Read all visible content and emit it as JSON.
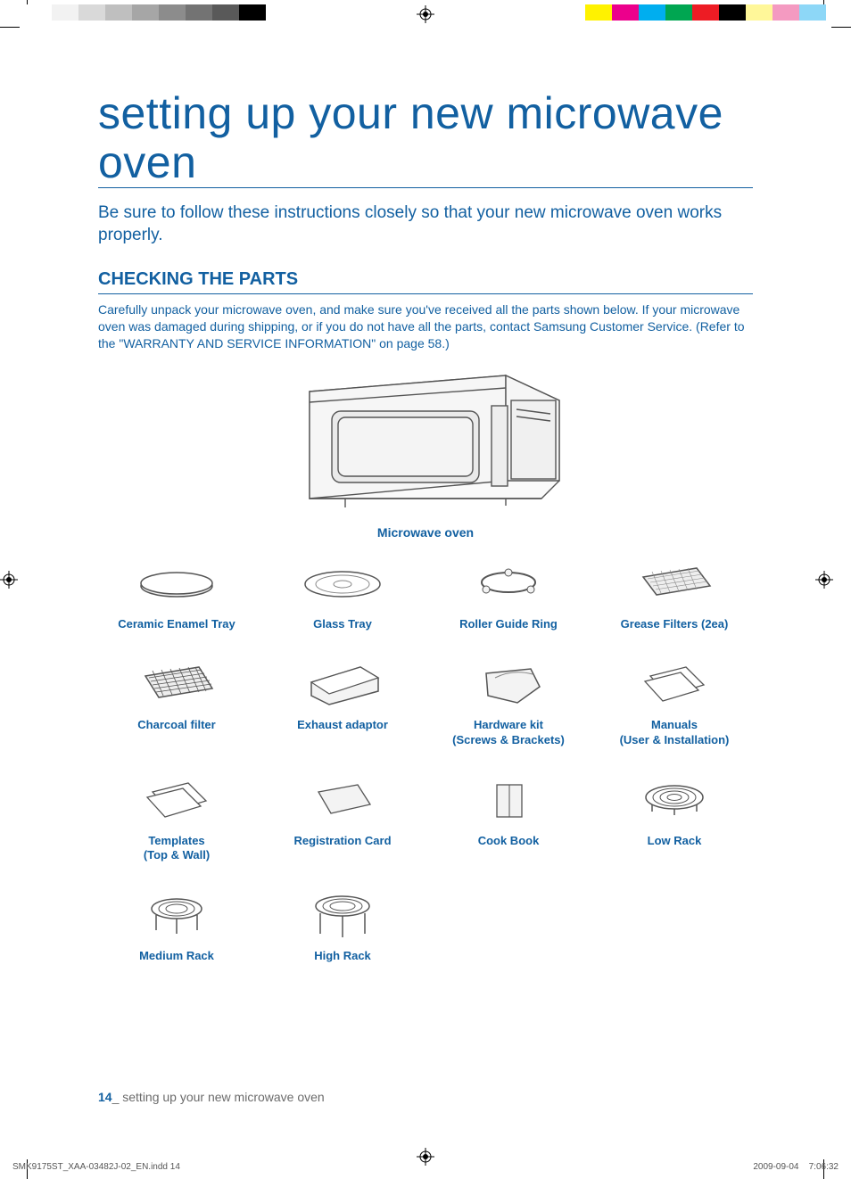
{
  "print": {
    "left_swatches": [
      "#ffffff",
      "#f2f2f2",
      "#d9d9d9",
      "#bfbfbf",
      "#a6a6a6",
      "#8c8c8c",
      "#737373",
      "#595959",
      "#000000",
      "#ffffff"
    ],
    "right_swatches": [
      "#ffffff",
      "#fff200",
      "#ec008c",
      "#00aeef",
      "#00a651",
      "#ed1c24",
      "#000000",
      "#fff799",
      "#f49ac1",
      "#8dd7f7"
    ],
    "slug_file": "SMK9175ST_XAA-03482J-02_EN.indd   14",
    "slug_date": "2009-09-04",
    "slug_time": "7:06:32"
  },
  "page": {
    "title": "setting up your new microwave oven",
    "subtitle": "Be sure to follow these instructions closely so that your new microwave oven works properly.",
    "section_head": "CHECKING THE PARTS",
    "body": "Carefully unpack your microwave oven, and make sure you've received all the parts shown below. If your microwave oven was damaged during shipping, or if you do not have all the parts, contact Samsung Customer Service. (Refer to the \"WARRANTY AND SERVICE INFORMATION\" on page 58.)",
    "microwave_label": "Microwave oven",
    "parts": [
      {
        "label": "Ceramic Enamel Tray",
        "icon": "tray-oval"
      },
      {
        "label": "Glass Tray",
        "icon": "glass-tray"
      },
      {
        "label": "Roller Guide Ring",
        "icon": "roller-ring"
      },
      {
        "label": "Grease Filters (2ea)",
        "icon": "grease-filter"
      },
      {
        "label": "Charcoal filter",
        "icon": "charcoal-filter"
      },
      {
        "label": "Exhaust adaptor",
        "icon": "exhaust-adaptor"
      },
      {
        "label": "Hardware kit\n(Screws & Brackets)",
        "icon": "hardware-kit"
      },
      {
        "label": "Manuals\n(User & Installation)",
        "icon": "manuals"
      },
      {
        "label": "Templates\n(Top & Wall)",
        "icon": "templates"
      },
      {
        "label": "Registration Card",
        "icon": "reg-card"
      },
      {
        "label": "Cook Book",
        "icon": "cook-book"
      },
      {
        "label": "Low Rack",
        "icon": "low-rack"
      },
      {
        "label": "Medium Rack",
        "icon": "medium-rack"
      },
      {
        "label": "High Rack",
        "icon": "high-rack"
      }
    ],
    "footer_page": "14",
    "footer_text": "_ setting up your new microwave oven"
  },
  "colors": {
    "brand": "#1260a1",
    "line": "#555555",
    "fill": "#f3f3f3"
  }
}
